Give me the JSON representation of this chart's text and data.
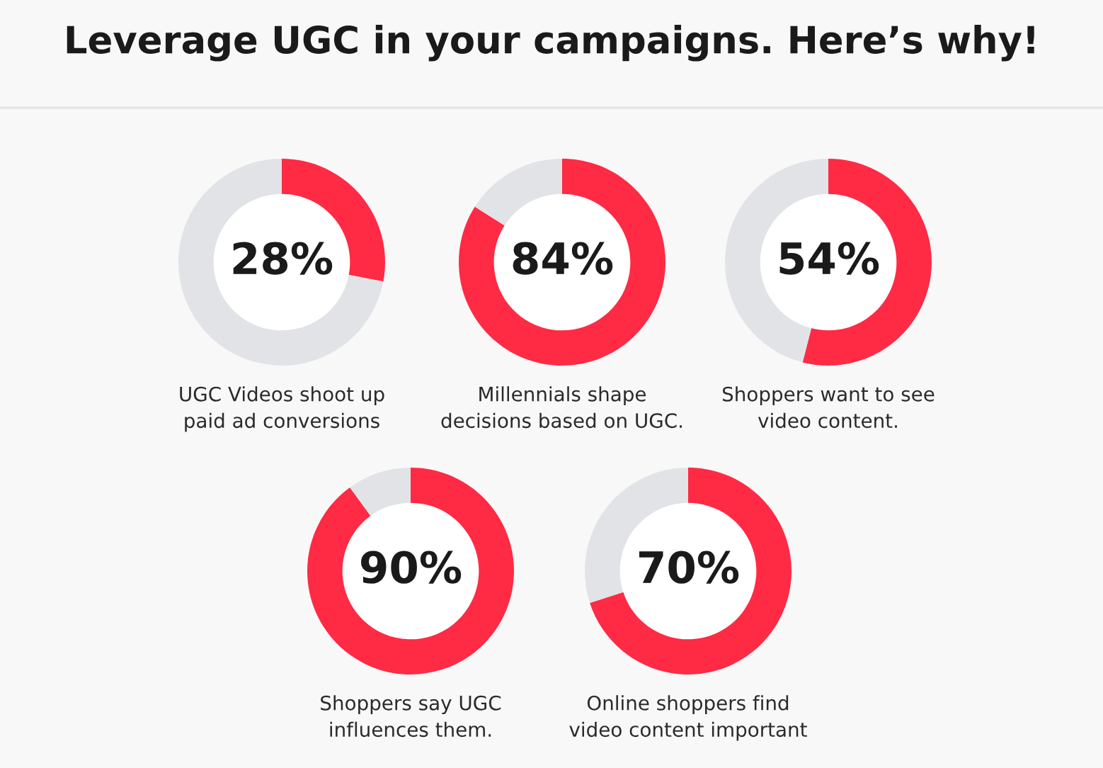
{
  "chart_data": [
    {
      "type": "other",
      "title": "Leverage UGC in your campaigns. Here’s why!"
    },
    {
      "type": "donut",
      "categories": [
        null,
        null
      ],
      "values": [
        28,
        72
      ],
      "colors": [
        "#ff2a44",
        "#e2e3e7"
      ],
      "value_labels": [
        "28%",
        null
      ],
      "xlabel": "UGC Videos shoot up\npaid ad conversions"
    },
    {
      "type": "donut",
      "categories": [
        null,
        null
      ],
      "values": [
        84,
        16
      ],
      "colors": [
        "#ff2a44",
        "#e2e3e7"
      ],
      "value_labels": [
        "84%",
        null
      ],
      "xlabel": "Millennials shape\ndecisions based on UGC."
    },
    {
      "type": "donut",
      "categories": [
        null,
        null
      ],
      "values": [
        54,
        46
      ],
      "colors": [
        "#ff2a44",
        "#e2e3e7"
      ],
      "value_labels": [
        "54%",
        null
      ],
      "xlabel": "Shoppers want to see\nvideo content."
    },
    {
      "type": "donut",
      "categories": [
        null,
        null
      ],
      "values": [
        90,
        10
      ],
      "colors": [
        "#ff2a44",
        "#e2e3e7"
      ],
      "value_labels": [
        "90%",
        null
      ],
      "xlabel": "Shoppers say UGC\ninfluences them."
    },
    {
      "type": "donut",
      "categories": [
        null,
        null
      ],
      "values": [
        70,
        30
      ],
      "colors": [
        "#ff2a44",
        "#e2e3e7"
      ],
      "value_labels": [
        "70%",
        null
      ],
      "xlabel": "Online shoppers find\nvideo content important"
    }
  ]
}
